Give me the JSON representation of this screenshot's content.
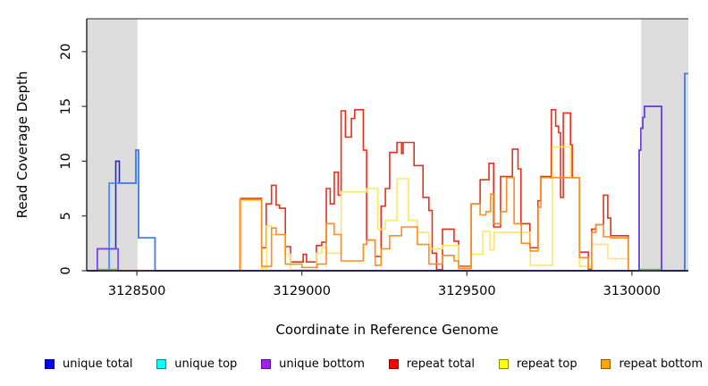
{
  "figure": {
    "xlabel": "Coordinate in Reference Genome",
    "ylabel": "Read Coverage Depth"
  },
  "chart_data": {
    "type": "line",
    "subtype": "step-coverage",
    "title": "",
    "xlabel": "Coordinate in Reference Genome",
    "ylabel": "Read Coverage Depth",
    "xlim": [
      3128348,
      3130171
    ],
    "ylim": [
      0,
      23
    ],
    "x_ticks": [
      3128500,
      3129000,
      3129500,
      3130000
    ],
    "y_ticks": [
      0,
      5,
      10,
      15,
      20
    ],
    "grid": false,
    "legend_position": "bottom",
    "shaded_regions": [
      {
        "name": "left-gray-region",
        "x0": 3128348,
        "x1": 3128502,
        "color": "#dcdcdc"
      },
      {
        "name": "right-gray-region",
        "x0": 3130028,
        "x1": 3130171,
        "color": "#dcdcdc"
      }
    ],
    "series": [
      {
        "name": "repeat total",
        "color": "#ee2d1c",
        "mode": "step",
        "points": [
          [
            3128348,
            0
          ],
          [
            3128815,
            6.6
          ],
          [
            3128878,
            2.1
          ],
          [
            3128892,
            6.1
          ],
          [
            3128908,
            7.8
          ],
          [
            3128922,
            6.0
          ],
          [
            3128932,
            5.7
          ],
          [
            3128950,
            2.2
          ],
          [
            3128966,
            0.8
          ],
          [
            3129004,
            1.5
          ],
          [
            3129014,
            0.8
          ],
          [
            3129044,
            2.3
          ],
          [
            3129060,
            2.6
          ],
          [
            3129074,
            7.5
          ],
          [
            3129086,
            6.1
          ],
          [
            3129098,
            9.0
          ],
          [
            3129110,
            6.9
          ],
          [
            3129119,
            14.6
          ],
          [
            3129132,
            12.2
          ],
          [
            3129150,
            13.9
          ],
          [
            3129160,
            14.7
          ],
          [
            3129186,
            11.0
          ],
          [
            3129196,
            2.8
          ],
          [
            3129222,
            1.3
          ],
          [
            3129240,
            5.9
          ],
          [
            3129253,
            7.5
          ],
          [
            3129266,
            10.8
          ],
          [
            3129288,
            11.7
          ],
          [
            3129302,
            10.7
          ],
          [
            3129307,
            11.7
          ],
          [
            3129340,
            9.6
          ],
          [
            3129367,
            6.7
          ],
          [
            3129385,
            5.5
          ],
          [
            3129395,
            1.6
          ],
          [
            3129408,
            0.1
          ],
          [
            3129426,
            3.8
          ],
          [
            3129461,
            2.7
          ],
          [
            3129475,
            0.4
          ],
          [
            3129513,
            6.1
          ],
          [
            3129540,
            8.3
          ],
          [
            3129567,
            9.8
          ],
          [
            3129581,
            4.0
          ],
          [
            3129602,
            8.6
          ],
          [
            3129638,
            11.1
          ],
          [
            3129655,
            9.3
          ],
          [
            3129664,
            4.3
          ],
          [
            3129691,
            2.1
          ],
          [
            3129715,
            6.4
          ],
          [
            3129724,
            8.6
          ],
          [
            3129756,
            14.7
          ],
          [
            3129769,
            13.2
          ],
          [
            3129778,
            12.6
          ],
          [
            3129784,
            6.7
          ],
          [
            3129792,
            14.4
          ],
          [
            3129814,
            11.5
          ],
          [
            3129819,
            8.5
          ],
          [
            3129841,
            1.7
          ],
          [
            3129868,
            0.1
          ],
          [
            3129878,
            3.8
          ],
          [
            3129891,
            4.2
          ],
          [
            3129914,
            6.9
          ],
          [
            3129927,
            4.8
          ],
          [
            3129936,
            3.2
          ],
          [
            3129989,
            0
          ]
        ]
      },
      {
        "name": "repeat top",
        "color": "#ffe566",
        "mode": "step",
        "points": [
          [
            3128348,
            0
          ],
          [
            3128815,
            6.4
          ],
          [
            3128878,
            0.2
          ],
          [
            3128893,
            4.1
          ],
          [
            3128908,
            3.3
          ],
          [
            3128948,
            1.5
          ],
          [
            3128966,
            0.1
          ],
          [
            3129044,
            1.6
          ],
          [
            3129060,
            2.1
          ],
          [
            3129075,
            1.6
          ],
          [
            3129119,
            7.2
          ],
          [
            3129196,
            7.5
          ],
          [
            3129230,
            3.8
          ],
          [
            3129253,
            4.6
          ],
          [
            3129288,
            8.4
          ],
          [
            3129323,
            4.6
          ],
          [
            3129350,
            3.5
          ],
          [
            3129385,
            2.0
          ],
          [
            3129426,
            2.3
          ],
          [
            3129475,
            0.3
          ],
          [
            3129513,
            1.5
          ],
          [
            3129548,
            3.6
          ],
          [
            3129570,
            1.9
          ],
          [
            3129583,
            3.5
          ],
          [
            3129692,
            0.5
          ],
          [
            3129759,
            11.3
          ],
          [
            3129814,
            8.5
          ],
          [
            3129841,
            0.4
          ],
          [
            3129878,
            2.4
          ],
          [
            3129927,
            1.1
          ],
          [
            3129989,
            0
          ]
        ]
      },
      {
        "name": "repeat bottom",
        "color": "#ff8c1e",
        "mode": "step",
        "points": [
          [
            3128348,
            0
          ],
          [
            3128812,
            6.5
          ],
          [
            3128878,
            0.4
          ],
          [
            3128908,
            3.9
          ],
          [
            3128922,
            3.3
          ],
          [
            3128950,
            0.6
          ],
          [
            3129000,
            0.3
          ],
          [
            3129046,
            0.6
          ],
          [
            3129074,
            4.3
          ],
          [
            3129098,
            3.3
          ],
          [
            3129119,
            0.9
          ],
          [
            3129186,
            2.4
          ],
          [
            3129196,
            2.8
          ],
          [
            3129222,
            0.5
          ],
          [
            3129240,
            2.0
          ],
          [
            3129266,
            3.2
          ],
          [
            3129302,
            4.0
          ],
          [
            3129350,
            2.4
          ],
          [
            3129385,
            0.6
          ],
          [
            3129426,
            1.4
          ],
          [
            3129461,
            0.9
          ],
          [
            3129475,
            0.2
          ],
          [
            3129513,
            6.1
          ],
          [
            3129540,
            5.1
          ],
          [
            3129558,
            5.4
          ],
          [
            3129572,
            7.0
          ],
          [
            3129583,
            4.3
          ],
          [
            3129602,
            5.4
          ],
          [
            3129620,
            8.5
          ],
          [
            3129643,
            4.3
          ],
          [
            3129665,
            2.5
          ],
          [
            3129692,
            1.8
          ],
          [
            3129716,
            5.8
          ],
          [
            3129724,
            8.5
          ],
          [
            3129841,
            1.2
          ],
          [
            3129868,
            0.2
          ],
          [
            3129878,
            3.5
          ],
          [
            3129891,
            4.2
          ],
          [
            3129914,
            3.1
          ],
          [
            3129936,
            3.0
          ],
          [
            3129989,
            0
          ]
        ]
      },
      {
        "name": "unique total",
        "color": "#2426d6",
        "mode": "step",
        "points": [
          [
            3128348,
            0
          ],
          [
            3128380,
            2
          ],
          [
            3128436,
            10
          ],
          [
            3128447,
            8
          ],
          [
            3128497,
            11
          ],
          [
            3128505,
            3
          ],
          [
            3128555,
            0
          ],
          [
            3130022,
            11
          ],
          [
            3130027,
            13
          ],
          [
            3130033,
            14
          ],
          [
            3130038,
            15
          ],
          [
            3130090,
            0
          ],
          [
            3130160,
            18
          ]
        ]
      },
      {
        "name": "unique top",
        "color": "#3e86f2",
        "mode": "step",
        "points": [
          [
            3128348,
            0
          ],
          [
            3128416,
            8
          ],
          [
            3128497,
            11
          ],
          [
            3128505,
            3
          ],
          [
            3128555,
            0
          ],
          [
            3130160,
            18
          ]
        ]
      },
      {
        "name": "unique bottom",
        "color": "#7342e0",
        "mode": "step",
        "points": [
          [
            3128348,
            0
          ],
          [
            3128380,
            2
          ],
          [
            3128443,
            0
          ],
          [
            3130022,
            11
          ],
          [
            3130027,
            13
          ],
          [
            3130033,
            14
          ],
          [
            3130038,
            15
          ],
          [
            3130090,
            0
          ]
        ]
      },
      {
        "name": "unique top zero overlap",
        "color": "#6abf69",
        "mode": "raw",
        "points": [
          [
            3128381,
            0.12
          ],
          [
            3128441,
            0.12
          ]
        ]
      },
      {
        "name": "unique top zero overlap right",
        "color": "#6abf69",
        "mode": "raw",
        "points": [
          [
            3130024,
            0.12
          ],
          [
            3130086,
            0.12
          ]
        ]
      }
    ]
  },
  "legend": {
    "items": [
      {
        "label": "unique total",
        "color": "#0000ff",
        "border": "#00008b"
      },
      {
        "label": "unique top",
        "color": "#00ffff",
        "border": "#00898b"
      },
      {
        "label": "unique bottom",
        "color": "#a020f0",
        "border": "#5c0f8b"
      },
      {
        "label": "repeat total",
        "color": "#ff0000",
        "border": "#8b0000"
      },
      {
        "label": "repeat top",
        "color": "#ffff00",
        "border": "#8b8b00"
      },
      {
        "label": "repeat bottom",
        "color": "#ffa500",
        "border": "#8b5a00"
      }
    ]
  }
}
